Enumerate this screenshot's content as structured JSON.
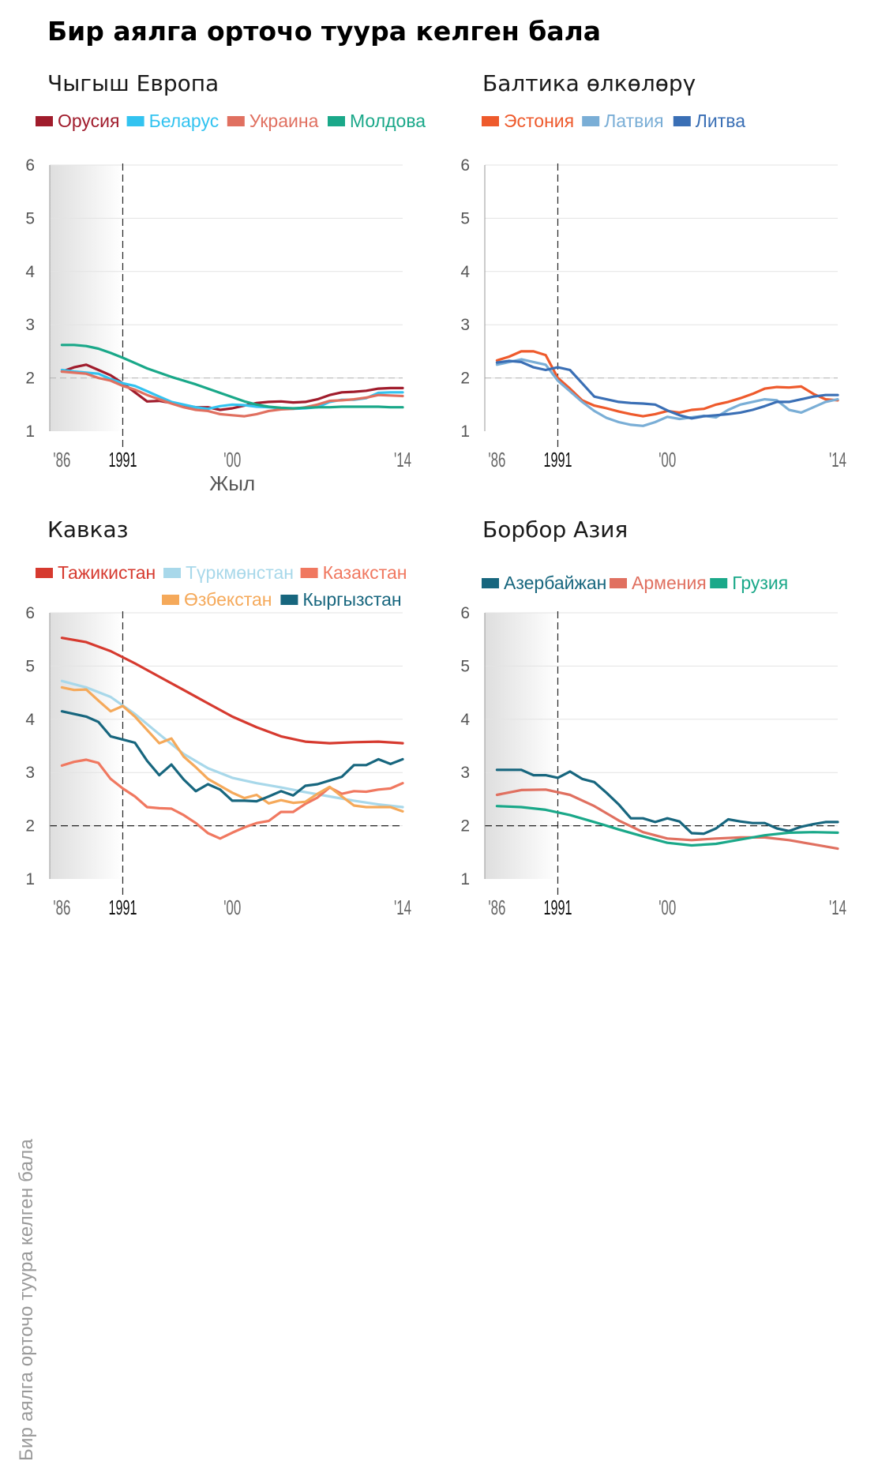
{
  "title": "Бир аялга орточо туура келген бала",
  "y_axis_title": "Бир аялга орточо туура келген бала",
  "chart_data": [
    {
      "type": "line",
      "title": "Чыгыш Европа",
      "xlabel": "Жыл",
      "ylabel": "",
      "xlim": [
        1985,
        2014
      ],
      "ylim": [
        1,
        6
      ],
      "yticks": [
        1,
        2,
        3,
        4,
        5,
        6
      ],
      "xticks": [
        {
          "x": 1986,
          "label": "'86"
        },
        {
          "x": 1991,
          "label": "1991"
        },
        {
          "x": 2000,
          "label": "'00"
        },
        {
          "x": 2014,
          "label": "'14"
        }
      ],
      "shaded_period": [
        1985,
        1991
      ],
      "marker_year": 1991,
      "reference_line": 2,
      "reference_style": "light",
      "legend_rows": [
        [
          "Орусия",
          "Беларус",
          "Украина",
          "Молдова"
        ]
      ],
      "series": [
        {
          "name": "Орусия",
          "color": "#a01c2c",
          "x": [
            1986,
            1987,
            1988,
            1989,
            1990,
            1991,
            1992,
            1993,
            1994,
            1995,
            1996,
            1997,
            1998,
            1999,
            2000,
            2001,
            2002,
            2003,
            2004,
            2005,
            2006,
            2007,
            2008,
            2009,
            2010,
            2011,
            2012,
            2013,
            2014
          ],
          "y": [
            2.12,
            2.2,
            2.25,
            2.15,
            2.05,
            1.9,
            1.73,
            1.56,
            1.57,
            1.53,
            1.49,
            1.45,
            1.45,
            1.4,
            1.43,
            1.48,
            1.53,
            1.55,
            1.56,
            1.54,
            1.55,
            1.6,
            1.68,
            1.73,
            1.74,
            1.76,
            1.8,
            1.81,
            1.81
          ]
        },
        {
          "name": "Беларус",
          "color": "#33c3f0",
          "x": [
            1986,
            1987,
            1988,
            1989,
            1990,
            1991,
            1992,
            1993,
            1994,
            1995,
            1996,
            1997,
            1998,
            1999,
            2000,
            2001,
            2002,
            2003,
            2004,
            2005,
            2006,
            2007,
            2008,
            2009,
            2010,
            2011,
            2012,
            2013,
            2014
          ],
          "y": [
            2.15,
            2.12,
            2.1,
            2.08,
            1.98,
            1.9,
            1.85,
            1.75,
            1.65,
            1.55,
            1.5,
            1.45,
            1.42,
            1.47,
            1.5,
            1.49,
            1.46,
            1.45,
            1.43,
            1.42,
            1.43,
            1.45,
            1.55,
            1.59,
            1.59,
            1.62,
            1.72,
            1.73,
            1.73
          ]
        },
        {
          "name": "Украина",
          "color": "#e07060",
          "x": [
            1986,
            1987,
            1988,
            1989,
            1990,
            1991,
            1992,
            1993,
            1994,
            1995,
            1996,
            1997,
            1998,
            1999,
            2000,
            2001,
            2002,
            2003,
            2004,
            2005,
            2006,
            2007,
            2008,
            2009,
            2010,
            2011,
            2012,
            2013,
            2014
          ],
          "y": [
            2.12,
            2.1,
            2.08,
            2.0,
            1.95,
            1.85,
            1.78,
            1.68,
            1.6,
            1.52,
            1.45,
            1.4,
            1.38,
            1.32,
            1.3,
            1.28,
            1.32,
            1.38,
            1.41,
            1.42,
            1.45,
            1.5,
            1.57,
            1.58,
            1.6,
            1.63,
            1.68,
            1.67,
            1.66
          ]
        },
        {
          "name": "Молдова",
          "color": "#1aa889",
          "x": [
            1986,
            1987,
            1988,
            1989,
            1990,
            1991,
            1992,
            1993,
            1994,
            1995,
            1996,
            1997,
            1998,
            1999,
            2000,
            2001,
            2002,
            2003,
            2004,
            2005,
            2006,
            2007,
            2008,
            2009,
            2010,
            2011,
            2012,
            2013,
            2014
          ],
          "y": [
            2.62,
            2.62,
            2.6,
            2.55,
            2.47,
            2.38,
            2.28,
            2.18,
            2.1,
            2.02,
            1.95,
            1.88,
            1.8,
            1.72,
            1.64,
            1.56,
            1.5,
            1.46,
            1.44,
            1.43,
            1.44,
            1.45,
            1.45,
            1.46,
            1.46,
            1.46,
            1.46,
            1.45,
            1.45
          ]
        }
      ]
    },
    {
      "type": "line",
      "title": "Балтика өлкөлөрү",
      "xlabel": "",
      "ylabel": "",
      "xlim": [
        1985,
        2014
      ],
      "ylim": [
        1,
        6
      ],
      "yticks": [
        1,
        2,
        3,
        4,
        5,
        6
      ],
      "xticks": [
        {
          "x": 1986,
          "label": "'86"
        },
        {
          "x": 1991,
          "label": "1991"
        },
        {
          "x": 2000,
          "label": "'00"
        },
        {
          "x": 2014,
          "label": "'14"
        }
      ],
      "shaded_period": [],
      "marker_year": 1991,
      "reference_line": 2,
      "reference_style": "light",
      "legend_rows": [
        [
          "Эстония",
          "Латвия",
          "Литва"
        ]
      ],
      "series": [
        {
          "name": "Эстония",
          "color": "#ee5a2c",
          "x": [
            1986,
            1987,
            1988,
            1989,
            1990,
            1991,
            1992,
            1993,
            1994,
            1995,
            1996,
            1997,
            1998,
            1999,
            2000,
            2001,
            2002,
            2003,
            2004,
            2005,
            2006,
            2007,
            2008,
            2009,
            2010,
            2011,
            2012,
            2013,
            2014
          ],
          "y": [
            2.33,
            2.4,
            2.5,
            2.5,
            2.43,
            2.0,
            1.8,
            1.58,
            1.48,
            1.43,
            1.37,
            1.32,
            1.28,
            1.32,
            1.38,
            1.35,
            1.4,
            1.42,
            1.5,
            1.55,
            1.62,
            1.7,
            1.8,
            1.83,
            1.82,
            1.84,
            1.7,
            1.6,
            1.58
          ]
        },
        {
          "name": "Латвия",
          "color": "#7aaed6",
          "x": [
            1986,
            1987,
            1988,
            1989,
            1990,
            1991,
            1992,
            1993,
            1994,
            1995,
            1996,
            1997,
            1998,
            1999,
            2000,
            2001,
            2002,
            2003,
            2004,
            2005,
            2006,
            2007,
            2008,
            2009,
            2010,
            2011,
            2012,
            2013,
            2014
          ],
          "y": [
            2.25,
            2.3,
            2.35,
            2.3,
            2.25,
            1.95,
            1.75,
            1.55,
            1.38,
            1.25,
            1.17,
            1.12,
            1.1,
            1.17,
            1.27,
            1.23,
            1.26,
            1.29,
            1.26,
            1.4,
            1.5,
            1.55,
            1.6,
            1.58,
            1.4,
            1.35,
            1.45,
            1.55,
            1.6
          ]
        },
        {
          "name": "Литва",
          "color": "#3a6fb5",
          "x": [
            1986,
            1987,
            1988,
            1989,
            1990,
            1991,
            1992,
            1993,
            1994,
            1995,
            1996,
            1997,
            1998,
            1999,
            2000,
            2001,
            2002,
            2003,
            2004,
            2005,
            2006,
            2007,
            2008,
            2009,
            2010,
            2011,
            2012,
            2013,
            2014
          ],
          "y": [
            2.29,
            2.32,
            2.3,
            2.2,
            2.15,
            2.2,
            2.15,
            1.9,
            1.65,
            1.6,
            1.55,
            1.53,
            1.52,
            1.5,
            1.39,
            1.3,
            1.24,
            1.28,
            1.3,
            1.32,
            1.35,
            1.4,
            1.47,
            1.55,
            1.55,
            1.6,
            1.65,
            1.68,
            1.68
          ]
        }
      ]
    },
    {
      "type": "line",
      "title": "Кавказ",
      "xlabel": "",
      "ylabel": "",
      "xlim": [
        1985,
        2014
      ],
      "ylim": [
        1,
        6
      ],
      "yticks": [
        1,
        2,
        3,
        4,
        5,
        6
      ],
      "xticks": [
        {
          "x": 1986,
          "label": "'86"
        },
        {
          "x": 1991,
          "label": "1991"
        },
        {
          "x": 2000,
          "label": "'00"
        },
        {
          "x": 2014,
          "label": "'14"
        }
      ],
      "shaded_period": [
        1985,
        1991
      ],
      "marker_year": 1991,
      "reference_line": 2,
      "reference_style": "dark",
      "legend_rows": [
        [
          "Тажикистан",
          "Түркмөнстан",
          "Казакстан"
        ],
        [
          "Өзбекстан",
          "Кыргызстан"
        ]
      ],
      "series": [
        {
          "name": "Тажикистан",
          "color": "#d63a2f",
          "x": [
            1986,
            1988,
            1990,
            1992,
            1994,
            1996,
            1998,
            2000,
            2002,
            2004,
            2006,
            2008,
            2010,
            2012,
            2014
          ],
          "y": [
            5.53,
            5.45,
            5.28,
            5.05,
            4.8,
            4.55,
            4.3,
            4.05,
            3.85,
            3.68,
            3.58,
            3.55,
            3.57,
            3.58,
            3.55
          ]
        },
        {
          "name": "Түркмөнстан",
          "color": "#a8d8ea",
          "x": [
            1986,
            1988,
            1990,
            1992,
            1994,
            1996,
            1998,
            2000,
            2002,
            2004,
            2006,
            2008,
            2010,
            2012,
            2014
          ],
          "y": [
            4.72,
            4.6,
            4.42,
            4.1,
            3.72,
            3.35,
            3.08,
            2.9,
            2.8,
            2.72,
            2.63,
            2.55,
            2.47,
            2.4,
            2.35
          ]
        },
        {
          "name": "Казакстан",
          "color": "#f07860",
          "x": [
            1986,
            1987,
            1988,
            1989,
            1990,
            1991,
            1992,
            1993,
            1994,
            1995,
            1996,
            1997,
            1998,
            1999,
            2000,
            2001,
            2002,
            2003,
            2004,
            2005,
            2006,
            2007,
            2008,
            2009,
            2010,
            2011,
            2012,
            2013,
            2014
          ],
          "y": [
            3.13,
            3.2,
            3.24,
            3.18,
            2.88,
            2.7,
            2.55,
            2.35,
            2.33,
            2.32,
            2.2,
            2.05,
            1.86,
            1.76,
            1.87,
            1.97,
            2.05,
            2.09,
            2.26,
            2.26,
            2.41,
            2.53,
            2.72,
            2.6,
            2.65,
            2.64,
            2.68,
            2.7,
            2.8
          ]
        },
        {
          "name": "Өзбекстан",
          "color": "#f5a95a",
          "x": [
            1986,
            1987,
            1988,
            1989,
            1990,
            1991,
            1992,
            1993,
            1994,
            1995,
            1996,
            1997,
            1998,
            1999,
            2000,
            2001,
            2002,
            2003,
            2004,
            2005,
            2006,
            2007,
            2008,
            2009,
            2010,
            2011,
            2012,
            2013,
            2014
          ],
          "y": [
            4.6,
            4.55,
            4.56,
            4.35,
            4.15,
            4.25,
            4.05,
            3.8,
            3.55,
            3.64,
            3.3,
            3.1,
            2.88,
            2.75,
            2.62,
            2.52,
            2.58,
            2.42,
            2.48,
            2.43,
            2.45,
            2.6,
            2.73,
            2.55,
            2.38,
            2.35,
            2.35,
            2.35,
            2.27
          ]
        },
        {
          "name": "Кыргызстан",
          "color": "#17667e",
          "x": [
            1986,
            1987,
            1988,
            1989,
            1990,
            1991,
            1992,
            1993,
            1994,
            1995,
            1996,
            1997,
            1998,
            1999,
            2000,
            2001,
            2002,
            2003,
            2004,
            2005,
            2006,
            2007,
            2008,
            2009,
            2010,
            2011,
            2012,
            2013,
            2014
          ],
          "y": [
            4.15,
            4.1,
            4.05,
            3.95,
            3.68,
            3.62,
            3.56,
            3.22,
            2.95,
            3.15,
            2.87,
            2.65,
            2.78,
            2.68,
            2.47,
            2.47,
            2.46,
            2.55,
            2.65,
            2.57,
            2.75,
            2.78,
            2.85,
            2.92,
            3.14,
            3.14,
            3.25,
            3.16,
            3.25
          ]
        }
      ]
    },
    {
      "type": "line",
      "title": "Борбор Азия",
      "xlabel": "",
      "ylabel": "",
      "xlim": [
        1985,
        2014
      ],
      "ylim": [
        1,
        6
      ],
      "yticks": [
        1,
        2,
        3,
        4,
        5,
        6
      ],
      "xticks": [
        {
          "x": 1986,
          "label": "'86"
        },
        {
          "x": 1991,
          "label": "1991"
        },
        {
          "x": 2000,
          "label": "'00"
        },
        {
          "x": 2014,
          "label": "'14"
        }
      ],
      "shaded_period": [
        1985,
        1991
      ],
      "marker_year": 1991,
      "reference_line": 2,
      "reference_style": "dark",
      "legend_rows": [
        [
          "Азербайжан",
          "Армения",
          "Грузия"
        ]
      ],
      "series": [
        {
          "name": "Азербайжан",
          "color": "#17667e",
          "x": [
            1986,
            1987,
            1988,
            1989,
            1990,
            1991,
            1992,
            1993,
            1994,
            1995,
            1996,
            1997,
            1998,
            1999,
            2000,
            2001,
            2002,
            2003,
            2004,
            2005,
            2006,
            2007,
            2008,
            2009,
            2010,
            2011,
            2012,
            2013,
            2014
          ],
          "y": [
            3.05,
            3.05,
            3.05,
            2.95,
            2.95,
            2.9,
            3.02,
            2.88,
            2.82,
            2.62,
            2.4,
            2.14,
            2.14,
            2.07,
            2.14,
            2.08,
            1.86,
            1.85,
            1.95,
            2.12,
            2.08,
            2.05,
            2.05,
            1.95,
            1.9,
            1.98,
            2.03,
            2.07,
            2.07
          ]
        },
        {
          "name": "Армения",
          "color": "#e07060",
          "x": [
            1986,
            1988,
            1990,
            1992,
            1994,
            1996,
            1998,
            2000,
            2002,
            2004,
            2006,
            2008,
            2010,
            2012,
            2014
          ],
          "y": [
            2.58,
            2.67,
            2.68,
            2.58,
            2.37,
            2.1,
            1.88,
            1.76,
            1.73,
            1.76,
            1.78,
            1.78,
            1.73,
            1.65,
            1.57
          ]
        },
        {
          "name": "Грузия",
          "color": "#1aa889",
          "x": [
            1986,
            1988,
            1990,
            1992,
            1994,
            1996,
            1998,
            2000,
            2002,
            2004,
            2006,
            2008,
            2010,
            2012,
            2014
          ],
          "y": [
            2.37,
            2.35,
            2.3,
            2.2,
            2.07,
            1.93,
            1.8,
            1.68,
            1.63,
            1.66,
            1.74,
            1.82,
            1.87,
            1.88,
            1.87
          ]
        }
      ]
    }
  ]
}
